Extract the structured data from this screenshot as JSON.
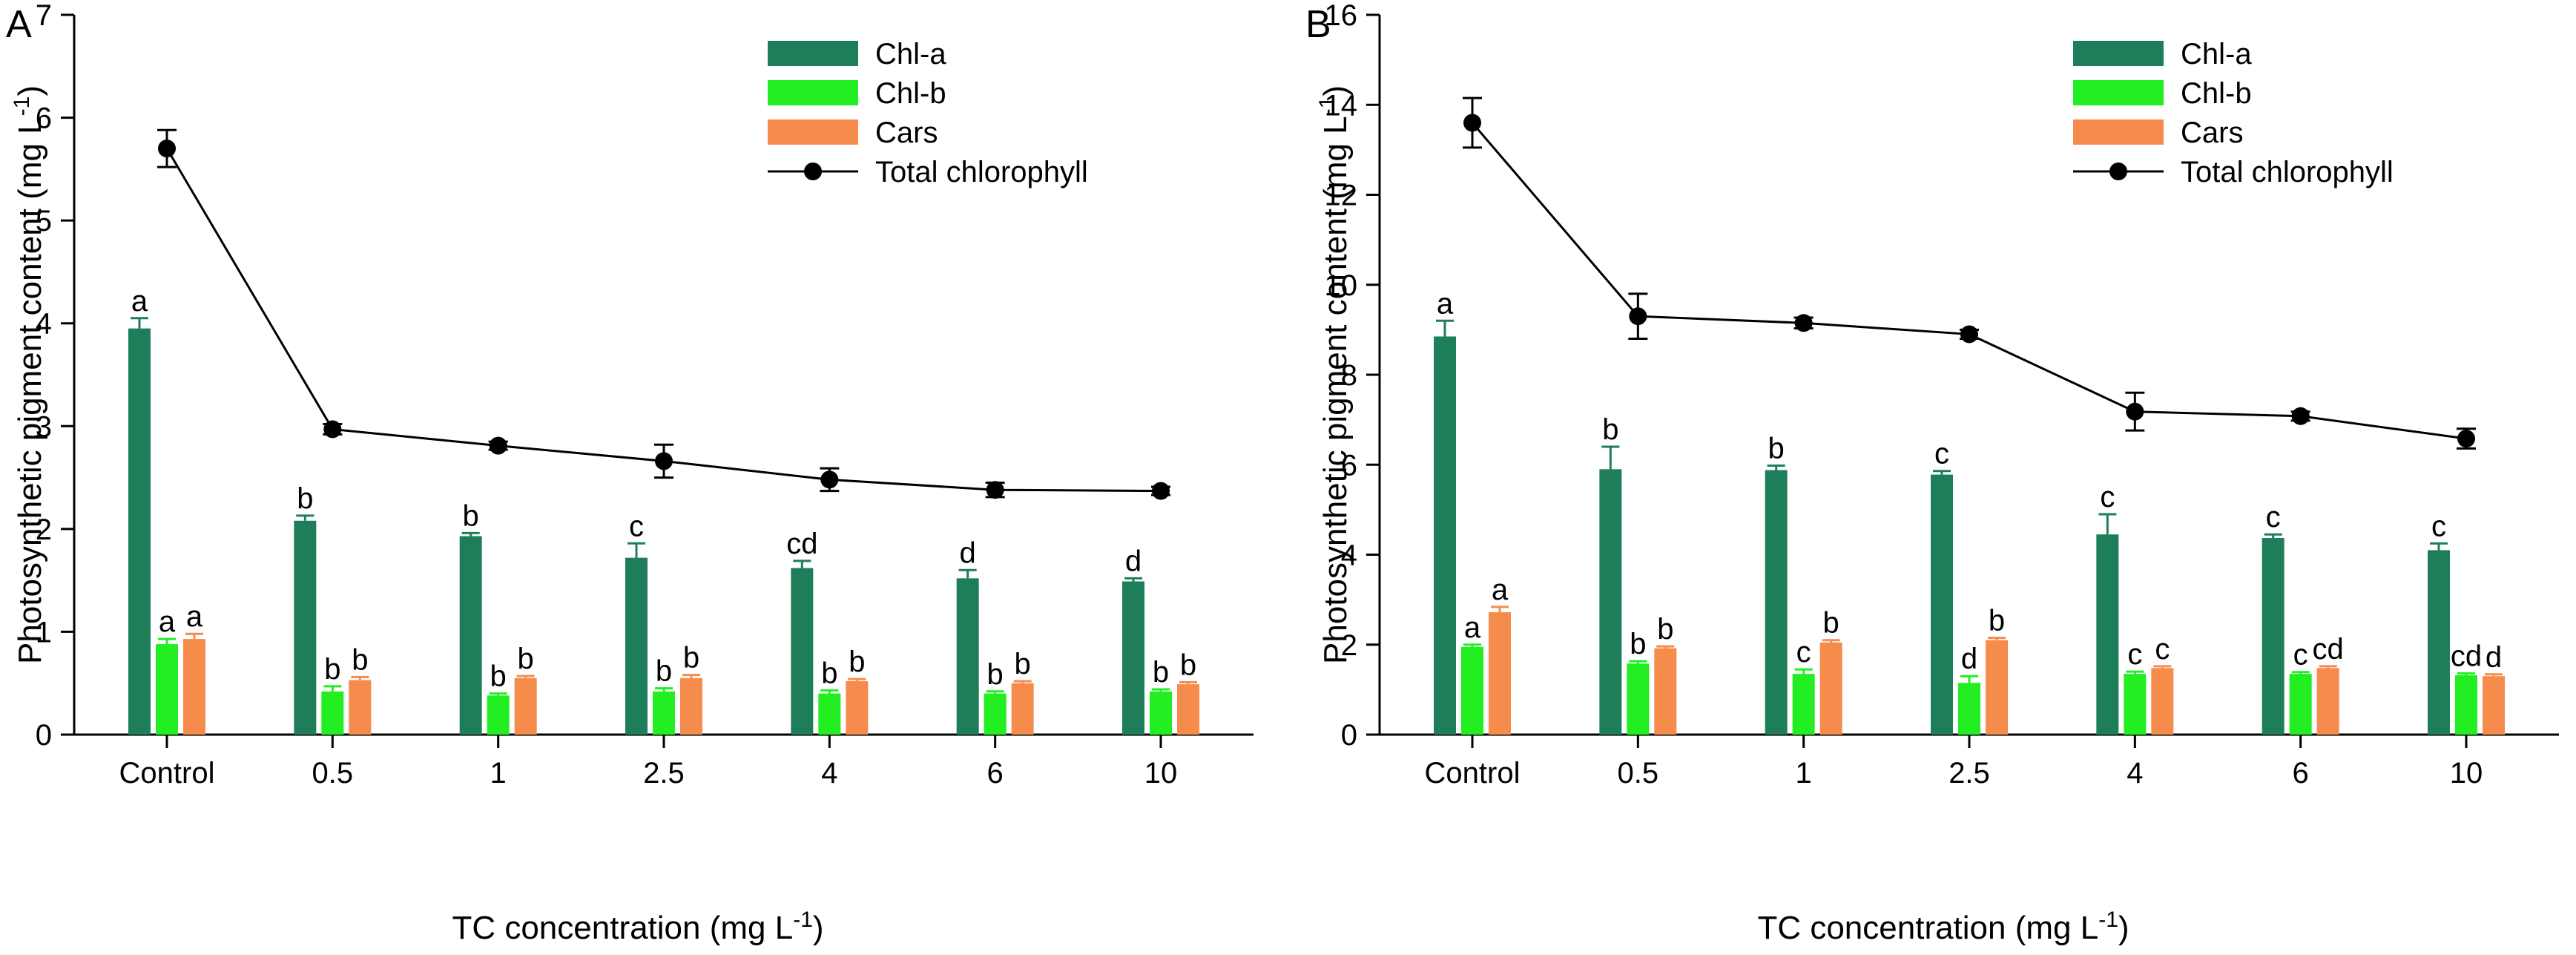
{
  "chart_data": [
    {
      "type": "bar",
      "panel_label": "A",
      "xlabel_main": "TC concentration (mg L",
      "xlabel_sup": "-1",
      "xlabel_end": ")",
      "ylabel_main": "Photosynthetic pigment content (mg L",
      "ylabel_sup": "-1",
      "ylabel_end": ")",
      "categories": [
        "Control",
        "0.5",
        "1",
        "2.5",
        "4",
        "6",
        "10"
      ],
      "ylim": [
        0,
        7
      ],
      "yticks": [
        "0",
        "1",
        "2",
        "3",
        "4",
        "5",
        "6",
        "7"
      ],
      "legend_position": "top-right",
      "series": [
        {
          "name": "Chl-a",
          "kind": "bar",
          "color": "#1e7e5a",
          "values": [
            3.95,
            2.08,
            1.93,
            1.72,
            1.62,
            1.52,
            1.49
          ],
          "errors": [
            0.1,
            0.05,
            0.03,
            0.14,
            0.07,
            0.08,
            0.03
          ],
          "letters": [
            "a",
            "b",
            "b",
            "c",
            "cd",
            "d",
            "d"
          ]
        },
        {
          "name": "Chl-b",
          "kind": "bar",
          "color": "#22ee22",
          "values": [
            0.88,
            0.42,
            0.38,
            0.42,
            0.4,
            0.4,
            0.42
          ],
          "errors": [
            0.05,
            0.05,
            0.02,
            0.03,
            0.03,
            0.02,
            0.02
          ],
          "letters": [
            "a",
            "b",
            "b",
            "b",
            "b",
            "b",
            "b"
          ]
        },
        {
          "name": "Cars",
          "kind": "bar",
          "color": "#f58c4b",
          "values": [
            0.93,
            0.53,
            0.55,
            0.55,
            0.52,
            0.5,
            0.49
          ],
          "errors": [
            0.05,
            0.03,
            0.02,
            0.03,
            0.02,
            0.02,
            0.02
          ],
          "letters": [
            "a",
            "b",
            "b",
            "b",
            "b",
            "b",
            "b"
          ]
        },
        {
          "name": "Total chlorophyll",
          "kind": "line",
          "color": "#000000",
          "values": [
            5.7,
            2.97,
            2.81,
            2.66,
            2.48,
            2.38,
            2.37
          ],
          "errors": [
            0.18,
            0.05,
            0.04,
            0.16,
            0.11,
            0.07,
            0.04
          ]
        }
      ]
    },
    {
      "type": "bar",
      "panel_label": "B",
      "xlabel_main": "TC concentration (mg L",
      "xlabel_sup": "-1",
      "xlabel_end": ")",
      "ylabel_main": "Photosynthetic pigment content (mg L",
      "ylabel_sup": "-1",
      "ylabel_end": ")",
      "categories": [
        "Control",
        "0.5",
        "1",
        "2.5",
        "4",
        "6",
        "10"
      ],
      "ylim": [
        0,
        16
      ],
      "yticks": [
        "0",
        "2",
        "4",
        "6",
        "8",
        "10",
        "12",
        "14",
        "16"
      ],
      "legend_position": "top-right",
      "series": [
        {
          "name": "Chl-a",
          "kind": "bar",
          "color": "#1e7e5a",
          "values": [
            8.85,
            5.9,
            5.88,
            5.78,
            4.45,
            4.37,
            4.1
          ],
          "errors": [
            0.35,
            0.5,
            0.1,
            0.08,
            0.45,
            0.08,
            0.15
          ],
          "letters": [
            "a",
            "b",
            "b",
            "c",
            "c",
            "c",
            "c"
          ]
        },
        {
          "name": "Chl-b",
          "kind": "bar",
          "color": "#22ee22",
          "values": [
            1.95,
            1.58,
            1.35,
            1.15,
            1.35,
            1.35,
            1.32
          ],
          "errors": [
            0.05,
            0.05,
            0.1,
            0.15,
            0.05,
            0.04,
            0.04
          ],
          "letters": [
            "a",
            "b",
            "c",
            "d",
            "c",
            "c",
            "cd"
          ]
        },
        {
          "name": "Cars",
          "kind": "bar",
          "color": "#f58c4b",
          "values": [
            2.72,
            1.92,
            2.05,
            2.1,
            1.48,
            1.48,
            1.3
          ],
          "errors": [
            0.12,
            0.04,
            0.05,
            0.05,
            0.04,
            0.04,
            0.04
          ],
          "letters": [
            "a",
            "b",
            "b",
            "b",
            "c",
            "cd",
            "d"
          ]
        },
        {
          "name": "Total chlorophyll",
          "kind": "line",
          "color": "#000000",
          "values": [
            13.6,
            9.3,
            9.15,
            8.9,
            7.18,
            7.08,
            6.58
          ],
          "errors": [
            0.55,
            0.5,
            0.12,
            0.1,
            0.42,
            0.1,
            0.22
          ]
        }
      ]
    }
  ]
}
